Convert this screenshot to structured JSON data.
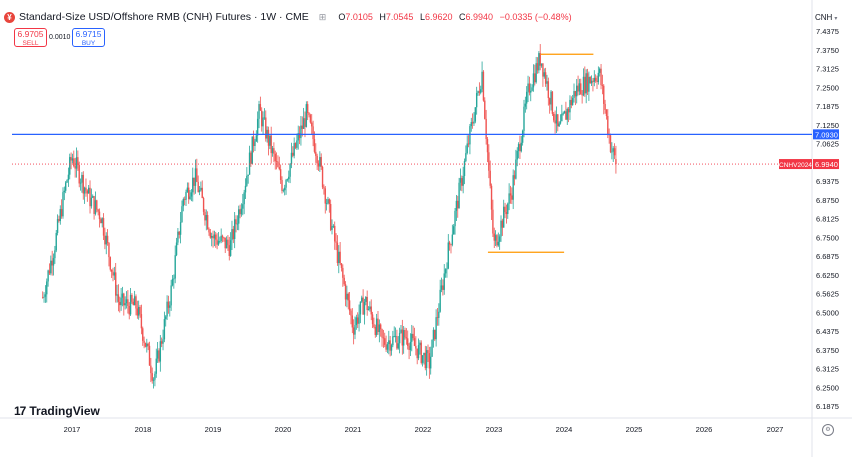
{
  "header": {
    "symbol_title": "Standard-Size USD/Offshore RMB (CNH) Futures · 1W · CME",
    "o_key": "O",
    "o_val": "7.0105",
    "h_key": "H",
    "h_val": "7.0545",
    "l_key": "L",
    "l_val": "6.9620",
    "c_key": "C",
    "c_val": "6.9940",
    "change": "−0.0335 (−0.48%)"
  },
  "trade": {
    "sell_price": "6.9705",
    "sell_label": "SELL",
    "spread": "0.0010",
    "buy_price": "6.9715",
    "buy_label": "BUY"
  },
  "currency": "CNH",
  "brand": "TradingView",
  "colors": {
    "up": "#26a69a",
    "down": "#ef5350",
    "hline": "#2962ff",
    "range": "#ff9800",
    "lastprice": "#f23645"
  },
  "chart_data": {
    "type": "candlestick",
    "title": "Standard-Size USD/Offshore RMB (CNH) Futures",
    "x_ticks": [
      "2017",
      "2018",
      "2019",
      "2020",
      "2021",
      "2022",
      "2023",
      "2024",
      "2025",
      "2026",
      "2027"
    ],
    "y_ticks": [
      "7.4375",
      "7.3750",
      "7.3125",
      "7.2500",
      "7.1875",
      "7.1250",
      "7.0625",
      "7.0000",
      "6.9375",
      "6.8750",
      "6.8125",
      "6.7500",
      "6.6875",
      "6.6250",
      "6.5625",
      "6.5000",
      "6.4375",
      "6.3750",
      "6.3125",
      "6.2500",
      "6.1875"
    ],
    "ylim": [
      6.155,
      7.47
    ],
    "price_path": [
      [
        "2016-08",
        6.55
      ],
      [
        "2016-10",
        6.72
      ],
      [
        "2016-12",
        6.93
      ],
      [
        "2017-01",
        7.02
      ],
      [
        "2017-04",
        6.88
      ],
      [
        "2017-06",
        6.82
      ],
      [
        "2017-09",
        6.53
      ],
      [
        "2017-12",
        6.52
      ],
      [
        "2018-03",
        6.28
      ],
      [
        "2018-06",
        6.58
      ],
      [
        "2018-08",
        6.88
      ],
      [
        "2018-10",
        6.95
      ],
      [
        "2019-01",
        6.75
      ],
      [
        "2019-04",
        6.72
      ],
      [
        "2019-06",
        6.88
      ],
      [
        "2019-09",
        7.17
      ],
      [
        "2019-12",
        6.98
      ],
      [
        "2020-01",
        6.92
      ],
      [
        "2020-05",
        7.16
      ],
      [
        "2020-07",
        7.02
      ],
      [
        "2020-10",
        6.72
      ],
      [
        "2021-01",
        6.45
      ],
      [
        "2021-03",
        6.54
      ],
      [
        "2021-06",
        6.4
      ],
      [
        "2021-10",
        6.42
      ],
      [
        "2022-02",
        6.33
      ],
      [
        "2022-05",
        6.68
      ],
      [
        "2022-09",
        7.1
      ],
      [
        "2022-11",
        7.3
      ],
      [
        "2023-01",
        6.72
      ],
      [
        "2023-04",
        6.9
      ],
      [
        "2023-07",
        7.25
      ],
      [
        "2023-09",
        7.35
      ],
      [
        "2023-12",
        7.1
      ],
      [
        "2024-03",
        7.24
      ],
      [
        "2024-07",
        7.3
      ],
      [
        "2024-09",
        7.05
      ],
      [
        "2024-10",
        6.99
      ]
    ],
    "horizontal_line": {
      "value": "7.0930",
      "color": "#2962ff"
    },
    "range_levels": [
      {
        "value": 7.36,
        "from": "2023-09",
        "to": "2024-06"
      },
      {
        "value": 6.7,
        "from": "2022-12",
        "to": "2024-01"
      }
    ],
    "last_price": {
      "label": "CNHV2024",
      "value": "6.9940"
    }
  }
}
